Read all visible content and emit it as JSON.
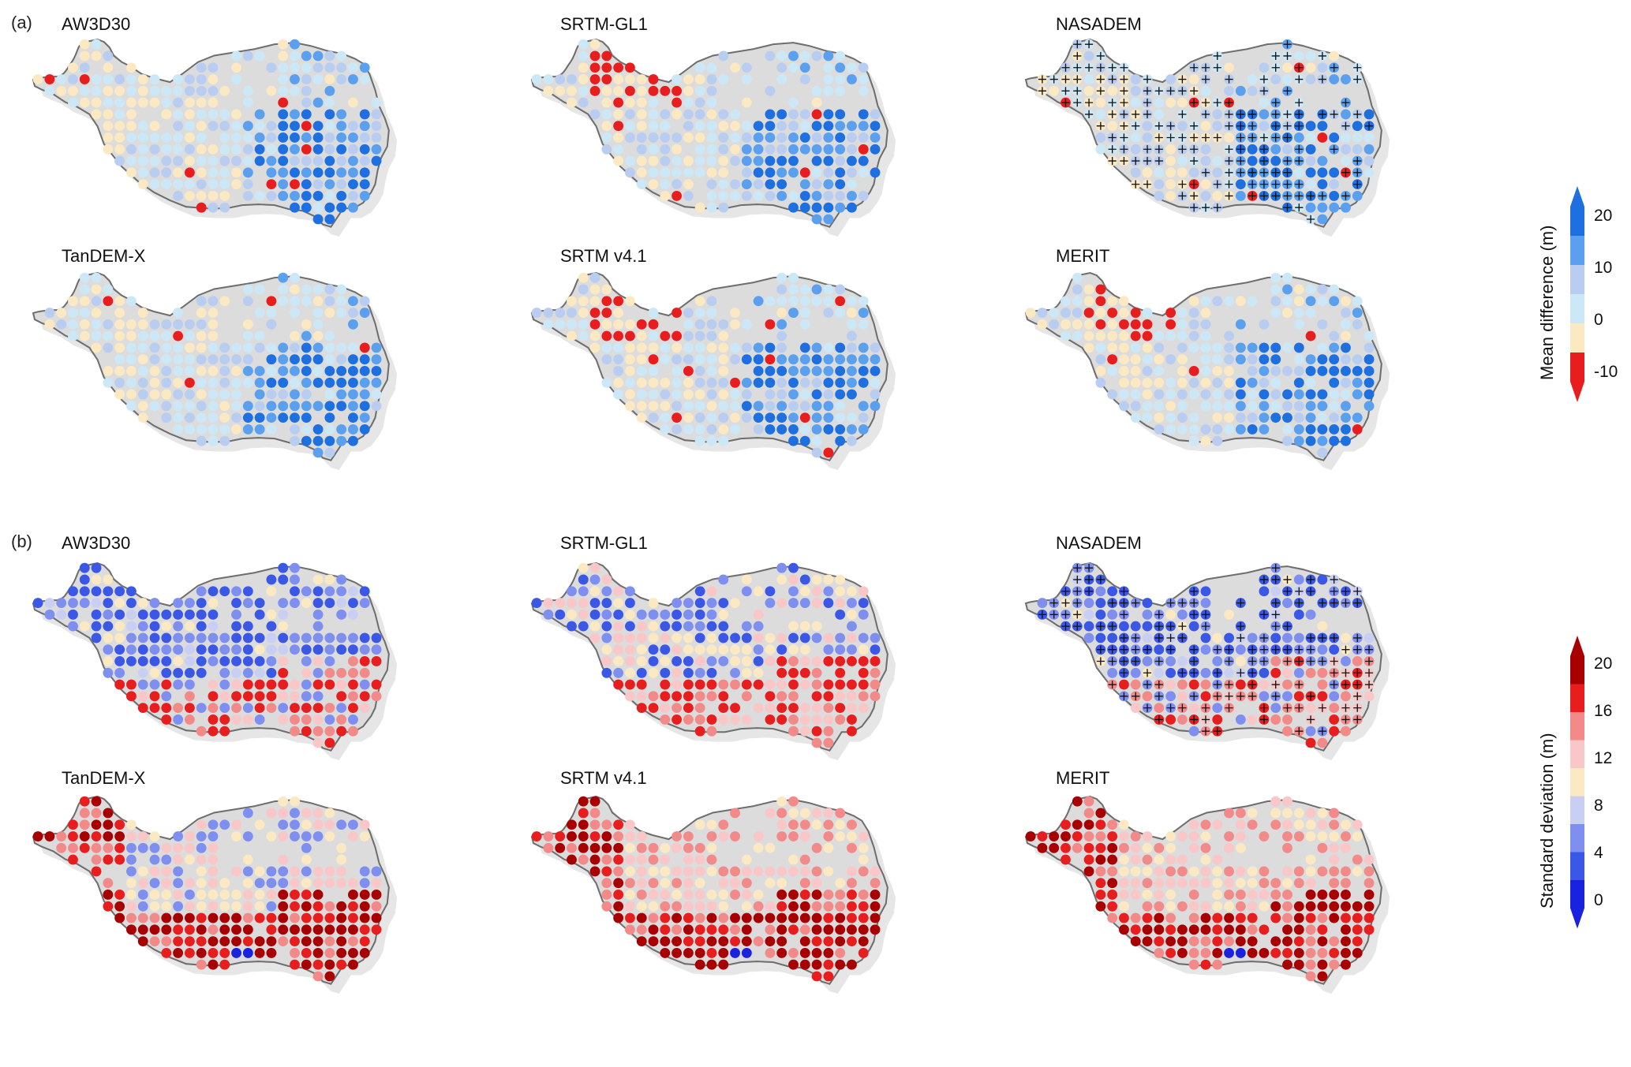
{
  "figure": {
    "panel_a": "(a)",
    "panel_b": "(b)",
    "maps_a": [
      "AW3D30",
      "SRTM-GL1",
      "NASADEM",
      "TanDEM-X",
      "SRTM v4.1",
      "MERIT"
    ],
    "maps_b": [
      "AW3D30",
      "SRTM-GL1",
      "NASADEM",
      "TanDEM-X",
      "SRTM v4.1",
      "MERIT"
    ]
  },
  "legend_mean": {
    "title": "Mean difference (m)",
    "ticks": [
      "20",
      "10",
      "0",
      "-10"
    ],
    "colors": [
      "#1e6fe0",
      "#5aa0ee",
      "#b9cdf0",
      "#cce8f7",
      "#fbe9c4",
      "#e81e1e"
    ]
  },
  "legend_sd": {
    "title": "Standard deviation (m)",
    "ticks": [
      "20",
      "16",
      "12",
      "8",
      "4",
      "0"
    ],
    "colors": [
      "#a80000",
      "#e81e1e",
      "#f28a8a",
      "#f9c7c7",
      "#fbe9c4",
      "#c9cff3",
      "#7f8ff0",
      "#3b57e6",
      "#1a22e0"
    ]
  },
  "styling": {
    "land_fill": "#dcdcdc",
    "outline": "#6e6e6e",
    "shadow": "#e6e6e6"
  }
}
